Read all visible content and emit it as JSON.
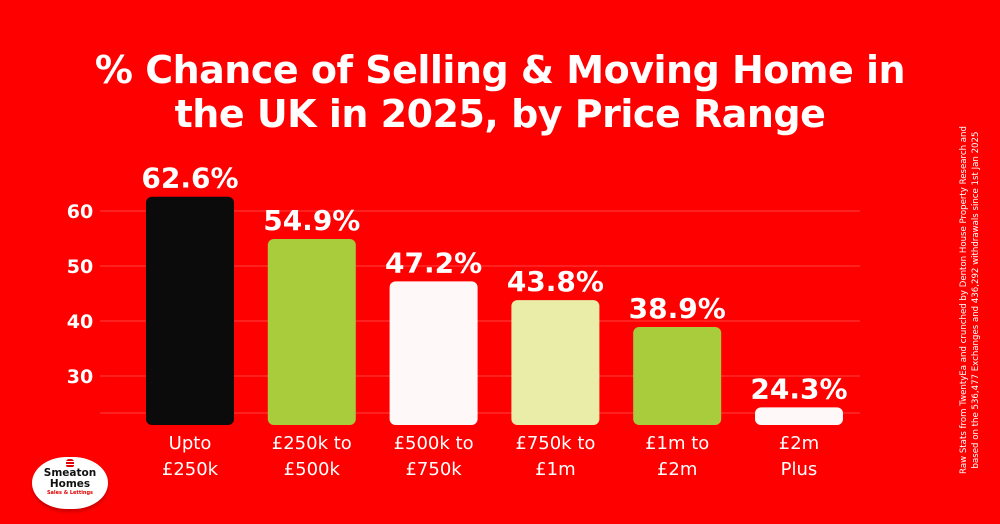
{
  "chart_data": {
    "type": "bar",
    "title": "% Chance of Selling & Moving Home in the UK in 2025, by Price Range",
    "title_lines": [
      "% Chance of Selling & Moving Home in",
      "the UK in 2025, by Price Range"
    ],
    "categories": [
      [
        "Upto",
        "£250k"
      ],
      [
        "£250k to",
        "£500k"
      ],
      [
        "£500k to",
        "£750k"
      ],
      [
        "£750k to",
        "£1m"
      ],
      [
        "£1m to",
        "£2m"
      ],
      [
        "£2m",
        "Plus"
      ]
    ],
    "values": [
      62.6,
      54.9,
      47.2,
      43.8,
      38.9,
      24.3
    ],
    "data_labels": [
      "62.6%",
      "54.9%",
      "47.2%",
      "43.8%",
      "38.9%",
      "24.3%"
    ],
    "bar_colors": [
      "#0b0b0b",
      "#a8cc3c",
      "#fff8f8",
      "#e9eda8",
      "#a8cc3c",
      "#fff8f8"
    ],
    "yticks": [
      30,
      40,
      50,
      60
    ],
    "ylim": [
      21,
      67
    ],
    "xlabel": "",
    "ylabel": "",
    "grid": true
  },
  "source_note": [
    "Raw Stats from TwentyEa and crunched by Denton House Property Research and",
    "based on the 536,477 Exchanges and 436,292 withdrawals since 1st Jan 2025"
  ],
  "logo": {
    "name_line1": "Smeaton",
    "name_line2": "Homes",
    "tagline": "Sales & Lettings"
  },
  "colors": {
    "background": "#ff0000",
    "text": "#ffffff"
  }
}
